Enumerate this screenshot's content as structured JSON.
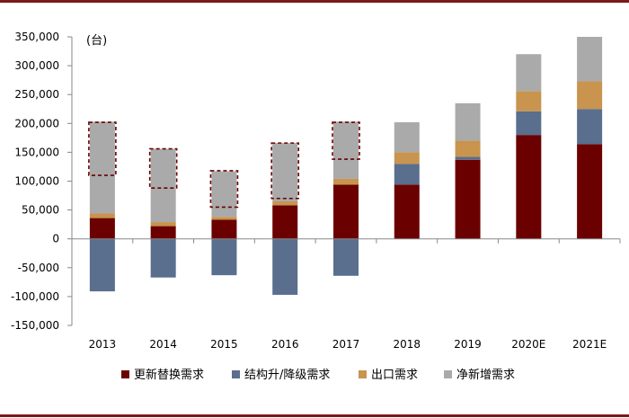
{
  "chart_data": {
    "type": "bar",
    "stacked": true,
    "unit_label": "(台)",
    "categories": [
      "2013",
      "2014",
      "2015",
      "2016",
      "2017",
      "2018",
      "2019",
      "2020E",
      "2021E"
    ],
    "yticks": [
      "350,000",
      "300,000",
      "250,000",
      "200,000",
      "150,000",
      "100,000",
      "50,000",
      "0",
      "-50,000",
      "-100,000",
      "-150,000"
    ],
    "ylim": [
      -150000,
      350000
    ],
    "legend_position": "bottom",
    "series": [
      {
        "name": "更新替换需求",
        "color": "#6b0000",
        "values": [
          36000,
          22000,
          33000,
          58000,
          94000,
          94000,
          137000,
          180000,
          164000
        ]
      },
      {
        "name": "结构升/降级需求",
        "color": "#5a6e8e",
        "values": [
          -91000,
          -67000,
          -63000,
          -97000,
          -64000,
          36000,
          5000,
          41000,
          61000
        ]
      },
      {
        "name": "出口需求",
        "color": "#c8944e",
        "values": [
          8000,
          7000,
          5000,
          7000,
          10000,
          20000,
          28000,
          35000,
          48000
        ]
      },
      {
        "name": "净新增需求",
        "color": "#aaaaaa",
        "values": [
          159000,
          127000,
          79000,
          101000,
          99000,
          52000,
          65000,
          64000,
          77000
        ]
      }
    ],
    "highlight_boxes": [
      {
        "category": "2013",
        "from": 110000,
        "to": 202000
      },
      {
        "category": "2014",
        "from": 88000,
        "to": 156000
      },
      {
        "category": "2015",
        "from": 55000,
        "to": 118000
      },
      {
        "category": "2016",
        "from": 70000,
        "to": 166000
      },
      {
        "category": "2017",
        "from": 138000,
        "to": 202000
      }
    ],
    "highlight_color": "#6b0000"
  }
}
